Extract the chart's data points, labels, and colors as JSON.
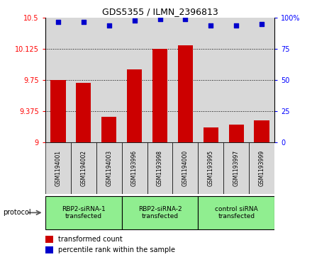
{
  "title": "GDS5355 / ILMN_2396813",
  "samples": [
    "GSM1194001",
    "GSM1194002",
    "GSM1194003",
    "GSM1193996",
    "GSM1193998",
    "GSM1194000",
    "GSM1193995",
    "GSM1193997",
    "GSM1193999"
  ],
  "bar_values": [
    9.75,
    9.72,
    9.31,
    9.88,
    10.125,
    10.175,
    9.18,
    9.22,
    9.27
  ],
  "dot_values": [
    97,
    97,
    94,
    98,
    99,
    99,
    94,
    94,
    95
  ],
  "ylim_left": [
    9.0,
    10.5
  ],
  "ylim_right": [
    0,
    100
  ],
  "yticks_left": [
    9.0,
    9.375,
    9.75,
    10.125,
    10.5
  ],
  "yticks_right": [
    0,
    25,
    50,
    75,
    100
  ],
  "ytick_labels_left": [
    "9",
    "9.375",
    "9.75",
    "10.125",
    "10.5"
  ],
  "ytick_labels_right": [
    "0",
    "25",
    "50",
    "75",
    "100%"
  ],
  "groups": [
    {
      "label": "RBP2-siRNA-1\ntransfected",
      "start": 0,
      "end": 3,
      "color": "#90EE90"
    },
    {
      "label": "RBP2-siRNA-2\ntransfected",
      "start": 3,
      "end": 6,
      "color": "#90EE90"
    },
    {
      "label": "control siRNA\ntransfected",
      "start": 6,
      "end": 9,
      "color": "#90EE90"
    }
  ],
  "bar_color": "#CC0000",
  "dot_color": "#0000CC",
  "bar_width": 0.6,
  "bg_color": "#D8D8D8",
  "protocol_label": "protocol",
  "legend_bar_label": "transformed count",
  "legend_dot_label": "percentile rank within the sample"
}
